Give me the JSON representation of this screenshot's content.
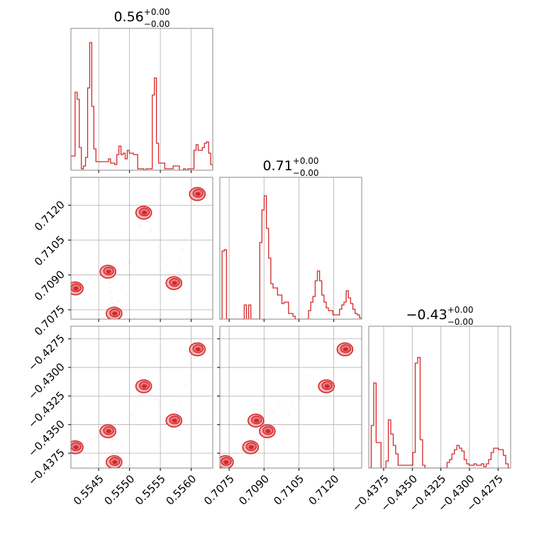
{
  "chart_data": {
    "type": "corner",
    "color": "#d62728",
    "grid": true,
    "titles": [
      {
        "value": "0.56",
        "plus": "+0.00",
        "minus": "−0.00"
      },
      {
        "value": "0.71",
        "plus": "+0.00",
        "minus": "−0.00"
      },
      {
        "value": "−0.43",
        "plus": "+0.00",
        "minus": "−0.00"
      }
    ],
    "params": [
      {
        "range": [
          0.55405,
          0.55635
        ],
        "ticks": [
          {
            "v": 0.5545,
            "label": "0.5545"
          },
          {
            "v": 0.555,
            "label": "0.5550"
          },
          {
            "v": 0.5555,
            "label": "0.5555"
          },
          {
            "v": 0.556,
            "label": "0.5560"
          }
        ]
      },
      {
        "range": [
          0.7071,
          0.7132
        ],
        "ticks": [
          {
            "v": 0.7075,
            "label": "0.7075"
          },
          {
            "v": 0.709,
            "label": "0.7090"
          },
          {
            "v": 0.7105,
            "label": "0.7105"
          },
          {
            "v": 0.712,
            "label": "0.7120"
          }
        ]
      },
      {
        "range": [
          -0.4388,
          -0.4264
        ],
        "ticks": [
          {
            "v": -0.4375,
            "label": "−0.4375"
          },
          {
            "v": -0.435,
            "label": "−0.4350"
          },
          {
            "v": -0.4325,
            "label": "−0.4325"
          },
          {
            "v": -0.43,
            "label": "−0.4300"
          },
          {
            "v": -0.4275,
            "label": "−0.4275"
          }
        ]
      }
    ],
    "histograms": [
      [
        0.1,
        0.1,
        0.55,
        0.5,
        0.16,
        0.01,
        0.03,
        0.09,
        0.58,
        0.9,
        0.45,
        0.15,
        0.06,
        0.06,
        0.06,
        0.06,
        0.06,
        0.06,
        0.08,
        0.05,
        0.05,
        0.04,
        0.11,
        0.17,
        0.11,
        0.12,
        0.08,
        0.14,
        0.12,
        0.12,
        0.11,
        0.11,
        0.01,
        0.01,
        0.01,
        0.0,
        0.01,
        0.01,
        0.01,
        0.53,
        0.65,
        0.19,
        0.05,
        0.05,
        0.05,
        0.01,
        0.01,
        0.01,
        0.01,
        0.03,
        0.03,
        0.03,
        0.0,
        0.0,
        0.01,
        0.0,
        0.01,
        0.01,
        0.01,
        0.14,
        0.18,
        0.14,
        0.14,
        0.16,
        0.19,
        0.2,
        0.12,
        0.04
      ],
      [
        0.0,
        0.48,
        0.49,
        0.0,
        0.0,
        0.0,
        0.0,
        0.0,
        0.0,
        0.0,
        0.0,
        0.1,
        0.0,
        0.1,
        0.0,
        0.0,
        0.0,
        0.0,
        0.54,
        0.77,
        0.87,
        0.64,
        0.43,
        0.25,
        0.22,
        0.22,
        0.17,
        0.17,
        0.11,
        0.12,
        0.12,
        0.04,
        0.04,
        0.02,
        0.0,
        0.0,
        0.0,
        0.0,
        0.0,
        0.0,
        0.06,
        0.12,
        0.16,
        0.27,
        0.34,
        0.27,
        0.17,
        0.12,
        0.08,
        0.06,
        0.06,
        0.03,
        0.03,
        0.03,
        0.07,
        0.1,
        0.12,
        0.2,
        0.15,
        0.11,
        0.07,
        0.04,
        0.03,
        0.01
      ],
      [
        0.0,
        0.3,
        0.6,
        0.18,
        0.18,
        0.0,
        0.0,
        0.05,
        0.34,
        0.24,
        0.16,
        0.1,
        0.02,
        0.02,
        0.02,
        0.02,
        0.02,
        0.02,
        0.11,
        0.74,
        0.78,
        0.2,
        0.02,
        0.0,
        0.0,
        0.0,
        0.0,
        0.0,
        0.0,
        0.0,
        0.0,
        0.0,
        0.04,
        0.06,
        0.1,
        0.13,
        0.16,
        0.14,
        0.12,
        0.06,
        0.03,
        0.02,
        0.02,
        0.03,
        0.02,
        0.02,
        0.03,
        0.01,
        0.03,
        0.06,
        0.11,
        0.14,
        0.14,
        0.13,
        0.13,
        0.09,
        0.03,
        0.0
      ]
    ],
    "clusters": [
      {
        "p": [
          0.55412,
          0.70842,
          -0.43698
        ]
      },
      {
        "p": [
          0.55465,
          0.70914,
          -0.43558
        ]
      },
      {
        "p": [
          0.55475,
          0.70734,
          -0.43828
        ]
      },
      {
        "p": [
          0.55523,
          0.71168,
          -0.43165
        ]
      },
      {
        "p": [
          0.55572,
          0.70865,
          -0.43465
        ]
      },
      {
        "p": [
          0.5561,
          0.71248,
          -0.42842
        ]
      }
    ]
  }
}
